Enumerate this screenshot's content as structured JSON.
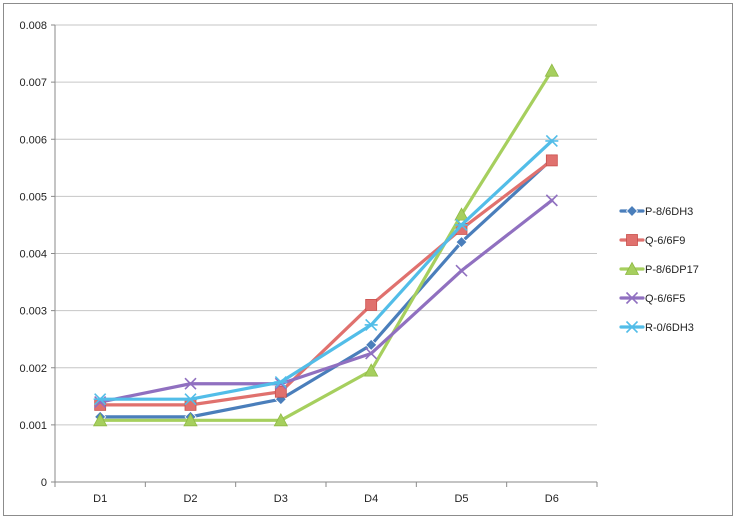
{
  "chart_data": {
    "type": "line",
    "title": "",
    "xlabel": "",
    "ylabel": "",
    "categories": [
      "D1",
      "D2",
      "D3",
      "D4",
      "D5",
      "D6"
    ],
    "ylim": [
      0,
      0.008
    ],
    "y_ticks": [
      "0",
      "0.001",
      "0.002",
      "0.003",
      "0.004",
      "0.005",
      "0.006",
      "0.007",
      "0.008"
    ],
    "grid": "horizontal",
    "legend_position": "right",
    "series": [
      {
        "name": "P-8/6DH3",
        "color": "#4a7ebb",
        "marker": "diamond",
        "values": [
          0.00114,
          0.00114,
          0.00145,
          0.0024,
          0.0042,
          0.00565
        ]
      },
      {
        "name": "Q-6/6F9",
        "color": "#e0716e",
        "marker": "square",
        "values": [
          0.00135,
          0.00135,
          0.00158,
          0.0031,
          0.00443,
          0.00563
        ]
      },
      {
        "name": "P-8/6DP17",
        "color": "#a6cf5e",
        "marker": "triangle",
        "values": [
          0.00108,
          0.00108,
          0.00108,
          0.00195,
          0.00468,
          0.0072
        ]
      },
      {
        "name": "Q-6/6F5",
        "color": "#9070c0",
        "marker": "x",
        "values": [
          0.0014,
          0.00172,
          0.00172,
          0.00225,
          0.0037,
          0.00493
        ]
      },
      {
        "name": "R-0/6DH3",
        "color": "#52bde8",
        "marker": "star",
        "values": [
          0.00145,
          0.00145,
          0.00175,
          0.00275,
          0.0045,
          0.00597
        ]
      }
    ]
  }
}
